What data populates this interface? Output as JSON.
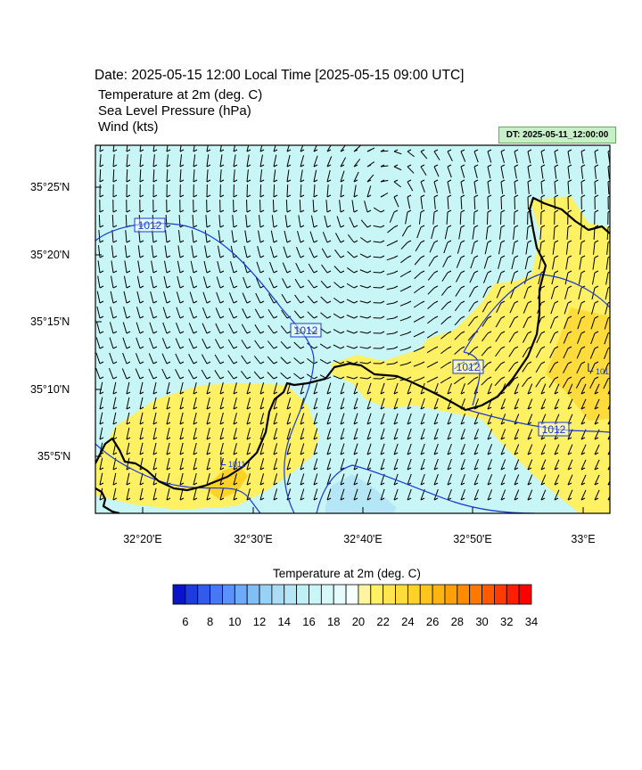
{
  "header": {
    "date_line": "Date: 2025-05-15  12:00 Local Time [2025-05-15  09:00 UTC]",
    "var1": "Temperature at 2m   (deg. C)",
    "var2": "Sea Level Pressure   (hPa)",
    "var3": "Wind   (kts)",
    "dt_badge": "DT: 2025-05-11_12:00:00"
  },
  "map": {
    "lat_labels": [
      "35°25'N",
      "35°20'N",
      "35°15'N",
      "35°10'N",
      "35°5'N"
    ],
    "lon_labels": [
      "32°20'E",
      "32°30'E",
      "32°40'E",
      "32°50'E",
      "33°E"
    ],
    "isobar_labels": [
      "1012",
      "1012",
      "1012",
      "1012"
    ],
    "low_labels": [
      {
        "letter": "L",
        "value": "1011"
      },
      {
        "letter": "L",
        "value": "101"
      }
    ]
  },
  "colorbar": {
    "title": "Temperature at 2m  (deg. C)",
    "labels": [
      "6",
      "8",
      "10",
      "12",
      "14",
      "16",
      "18",
      "20",
      "22",
      "24",
      "26",
      "28",
      "30",
      "32",
      "34"
    ],
    "colors": [
      "#0a14c8",
      "#1e3cdc",
      "#325aeb",
      "#4678f5",
      "#5a91fa",
      "#6eaafa",
      "#82bef5",
      "#96d2f5",
      "#aadcf5",
      "#b4e6f5",
      "#bef0f5",
      "#c8f5f5",
      "#d6f8f8",
      "#e6fbfb",
      "#f5ffff",
      "#fff5a0",
      "#fff064",
      "#ffe650",
      "#ffdc3c",
      "#ffd228",
      "#ffc41e",
      "#ffb414",
      "#ffa00a",
      "#ff8c00",
      "#ff7800",
      "#ff5a00",
      "#ff3c00",
      "#ff1e00",
      "#ff0000"
    ]
  }
}
